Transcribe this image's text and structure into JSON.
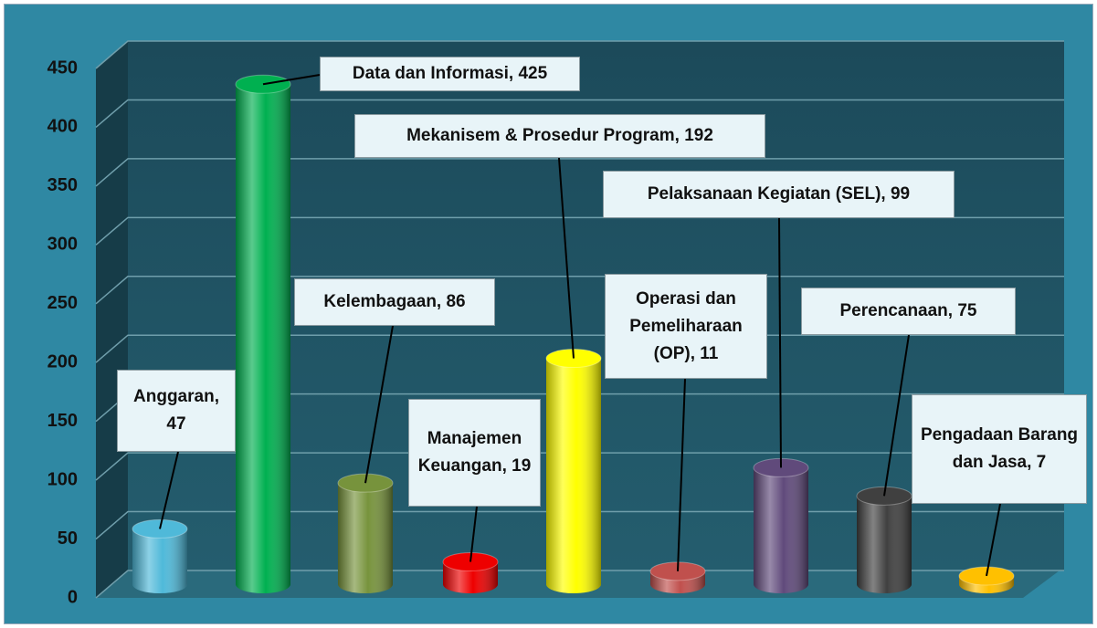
{
  "chart_data": {
    "type": "bar3d",
    "values": [
      47,
      425,
      86,
      19,
      192,
      11,
      99,
      75,
      7
    ],
    "value_labels": [
      "Anggaran, 47",
      "Data dan Informasi, 425",
      "Kelembagaan, 86",
      "Manajemen Keuangan, 19",
      "Mekanisem & Prosedur Program, 192",
      "Operasi dan Pemeliharaan (OP), 11",
      "Pelaksanaan Kegiatan (SEL), 99",
      "Perencanaan, 75",
      "Pengadaan Barang dan Jasa, 7"
    ],
    "colors": [
      "#4fb9d9",
      "#00b050",
      "#77933c",
      "#ee0000",
      "#ffff00",
      "#c0504d",
      "#604a7b",
      "#404040",
      "#ffc000"
    ],
    "ylim": [
      0,
      450
    ],
    "yticks": [
      0,
      50,
      100,
      150,
      200,
      250,
      300,
      350,
      400,
      450
    ],
    "grid": true
  }
}
